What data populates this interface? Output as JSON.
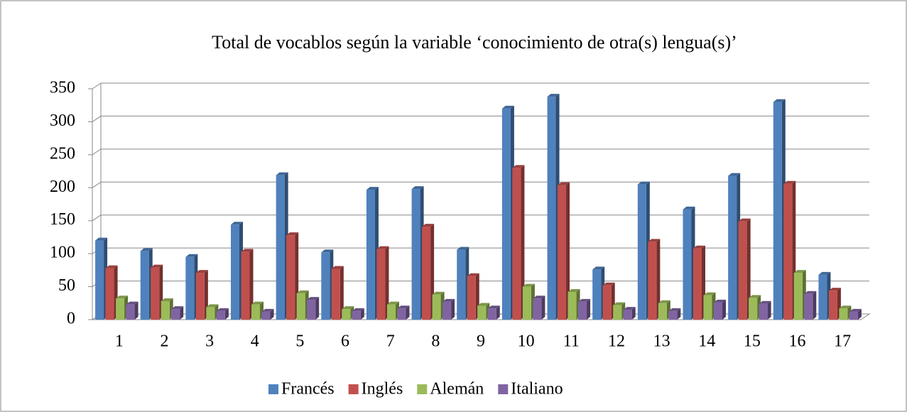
{
  "chart_data": {
    "type": "bar3d",
    "title": "Total de vocablos según la variable ‘conocimiento de otra(s) lengua(s)’",
    "categories": [
      "1",
      "2",
      "3",
      "4",
      "5",
      "6",
      "7",
      "8",
      "9",
      "10",
      "11",
      "12",
      "13",
      "14",
      "15",
      "16",
      "17"
    ],
    "series": [
      {
        "name": "Francés",
        "color": "#4f81bd",
        "values": [
          120,
          104,
          95,
          144,
          219,
          102,
          197,
          198,
          106,
          320,
          338,
          76,
          205,
          167,
          218,
          330,
          68
        ]
      },
      {
        "name": "Inglés",
        "color": "#c0504d",
        "values": [
          78,
          79,
          71,
          103,
          128,
          77,
          107,
          141,
          66,
          230,
          204,
          52,
          118,
          108,
          149,
          206,
          44
        ]
      },
      {
        "name": "Alemán",
        "color": "#9bbb59",
        "values": [
          32,
          28,
          19,
          23,
          40,
          16,
          23,
          38,
          21,
          50,
          42,
          22,
          25,
          37,
          33,
          71,
          17
        ]
      },
      {
        "name": "Italiano",
        "color": "#8064a2",
        "values": [
          23,
          16,
          13,
          12,
          30,
          13,
          17,
          27,
          17,
          32,
          27,
          15,
          13,
          26,
          24,
          39,
          12
        ]
      }
    ],
    "ylim": [
      0,
      350
    ],
    "yticks": [
      0,
      50,
      100,
      150,
      200,
      250,
      300,
      350
    ],
    "grid": true,
    "legend": "bottom"
  }
}
